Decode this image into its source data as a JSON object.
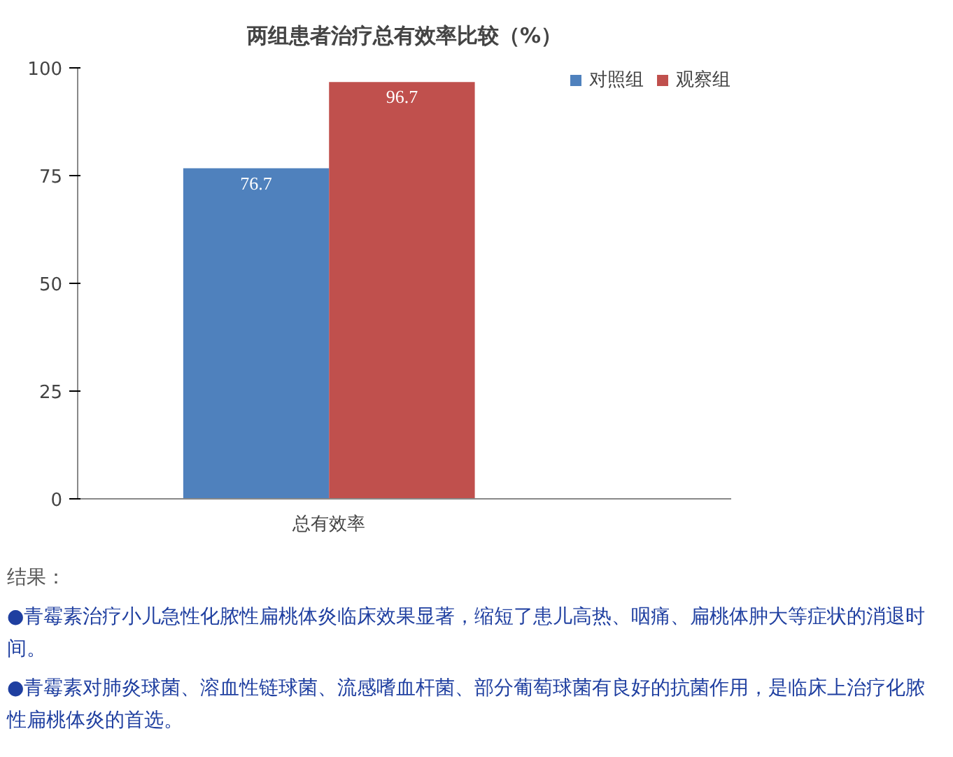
{
  "chart_data": {
    "type": "bar",
    "title": "两组患者治疗总有效率比较（%）",
    "categories": [
      "总有效率"
    ],
    "series": [
      {
        "name": "对照组",
        "color": "#4f81bd",
        "values": [
          76.7
        ]
      },
      {
        "name": "观察组",
        "color": "#c0504d",
        "values": [
          96.7
        ]
      }
    ],
    "ylim": [
      0,
      100
    ],
    "yticks": [
      0,
      25,
      50,
      75,
      100
    ],
    "grid": false,
    "legend": "top right",
    "data_labels": true,
    "annotations": [
      "结果：",
      "●青霉素治疗小儿急性化脓性扁桃体炎临床效果显著，缩短了患儿高热、咽痛、扁桃体肿大等症状的消退时间。",
      "●青霉素对肺炎球菌、溶血性链球菌、流感嗜血杆菌、部分葡萄球菌有良好的抗菌作用，是临床上治疗化脓性扁桃体炎的首选。"
    ]
  }
}
